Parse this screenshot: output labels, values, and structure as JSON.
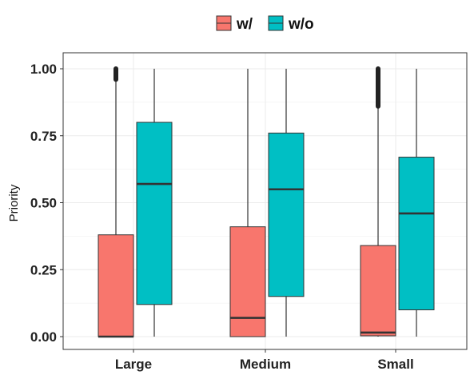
{
  "chart_data": {
    "type": "boxplot",
    "title": "",
    "xlabel": "",
    "ylabel": "Priority",
    "ylim": [
      0,
      1
    ],
    "yticks": [
      0,
      0.25,
      0.5,
      0.75,
      1
    ],
    "ytick_labels": [
      "0.00",
      "0.25",
      "0.50",
      "0.75",
      "1.00"
    ],
    "categories": [
      "Large",
      "Medium",
      "Small"
    ],
    "grid": true,
    "legend_position": "top",
    "series": [
      {
        "name": "w/",
        "color": "#F8766D",
        "boxes": [
          {
            "min": 0,
            "q1": 0,
            "median": 0,
            "q3": 0.38,
            "max": 0.96,
            "outliers_from": 0.96,
            "outliers_to": 1.0
          },
          {
            "min": 0,
            "q1": 0,
            "median": 0.07,
            "q3": 0.41,
            "max": 1.0
          },
          {
            "min": 0,
            "q1": 0.003,
            "median": 0.015,
            "q3": 0.34,
            "max": 0.86,
            "outliers_from": 0.86,
            "outliers_to": 1.0
          }
        ]
      },
      {
        "name": "w/o",
        "color": "#00BFC4",
        "boxes": [
          {
            "min": 0,
            "q1": 0.12,
            "median": 0.57,
            "q3": 0.8,
            "max": 1.0
          },
          {
            "min": 0,
            "q1": 0.15,
            "median": 0.55,
            "q3": 0.76,
            "max": 1.0
          },
          {
            "min": 0,
            "q1": 0.1,
            "median": 0.46,
            "q3": 0.67,
            "max": 1.0
          }
        ]
      }
    ]
  }
}
